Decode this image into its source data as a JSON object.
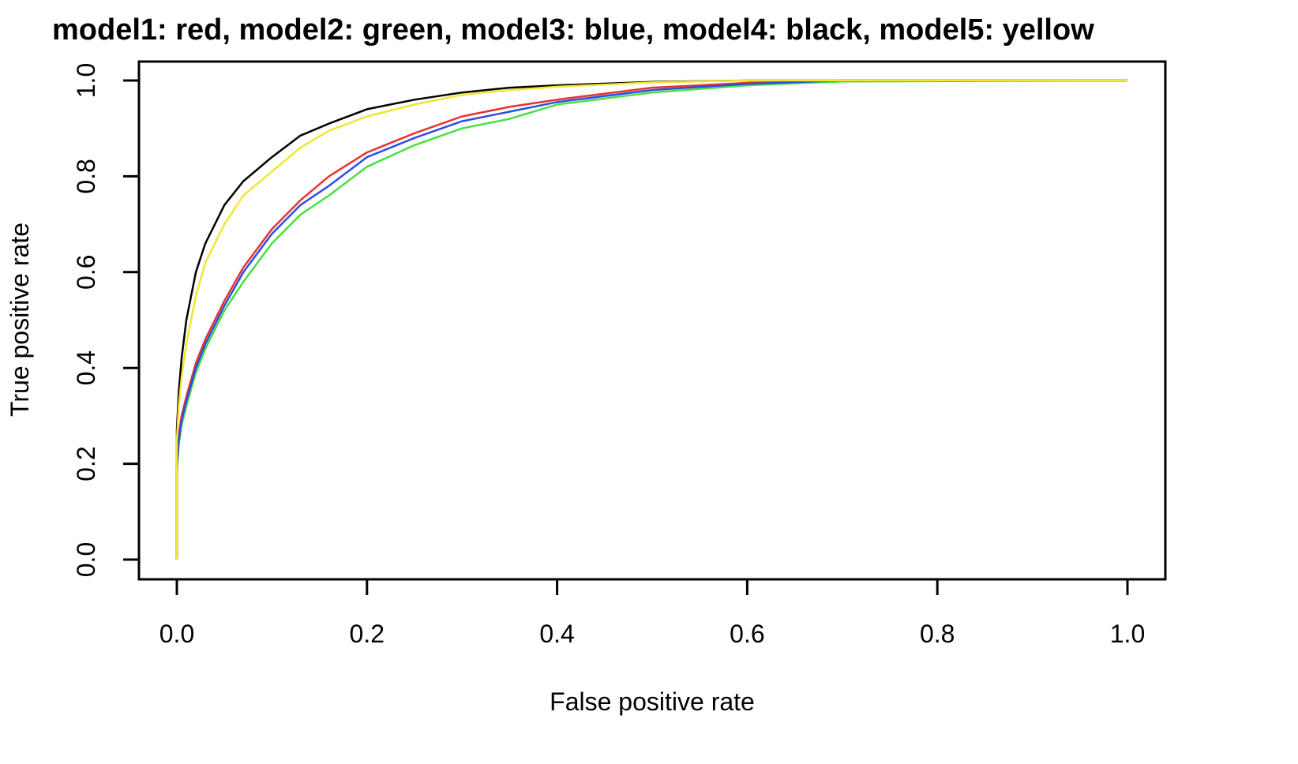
{
  "chart_data": {
    "type": "line",
    "title": "model1: red, model2: green, model3: blue, model4: black, model5: yellow",
    "xlabel": "False positive rate",
    "ylabel": "True positive rate",
    "xlim": [
      0,
      1
    ],
    "ylim": [
      0,
      1
    ],
    "xticks": [
      "0.0",
      "0.2",
      "0.4",
      "0.6",
      "0.8",
      "1.0"
    ],
    "yticks": [
      "0.0",
      "0.2",
      "0.4",
      "0.6",
      "0.8",
      "1.0"
    ],
    "grid": false,
    "legend": "none",
    "series": [
      {
        "name": "model1",
        "color": "#e8322c",
        "points": [
          [
            0,
            0
          ],
          [
            0,
            0.2
          ],
          [
            0.002,
            0.26
          ],
          [
            0.005,
            0.3
          ],
          [
            0.01,
            0.34
          ],
          [
            0.02,
            0.41
          ],
          [
            0.03,
            0.46
          ],
          [
            0.05,
            0.54
          ],
          [
            0.07,
            0.61
          ],
          [
            0.1,
            0.69
          ],
          [
            0.13,
            0.75
          ],
          [
            0.16,
            0.8
          ],
          [
            0.2,
            0.85
          ],
          [
            0.25,
            0.89
          ],
          [
            0.3,
            0.925
          ],
          [
            0.35,
            0.945
          ],
          [
            0.4,
            0.96
          ],
          [
            0.5,
            0.985
          ],
          [
            0.6,
            0.995
          ],
          [
            0.7,
            1.0
          ],
          [
            1.0,
            1.0
          ]
        ]
      },
      {
        "name": "model2",
        "color": "#48e040",
        "points": [
          [
            0,
            0
          ],
          [
            0,
            0.18
          ],
          [
            0.002,
            0.24
          ],
          [
            0.005,
            0.28
          ],
          [
            0.01,
            0.32
          ],
          [
            0.02,
            0.39
          ],
          [
            0.03,
            0.44
          ],
          [
            0.05,
            0.52
          ],
          [
            0.07,
            0.58
          ],
          [
            0.1,
            0.66
          ],
          [
            0.13,
            0.72
          ],
          [
            0.16,
            0.76
          ],
          [
            0.2,
            0.82
          ],
          [
            0.25,
            0.865
          ],
          [
            0.3,
            0.9
          ],
          [
            0.35,
            0.92
          ],
          [
            0.4,
            0.95
          ],
          [
            0.5,
            0.975
          ],
          [
            0.6,
            0.99
          ],
          [
            0.7,
            0.998
          ],
          [
            1.0,
            1.0
          ]
        ]
      },
      {
        "name": "model3",
        "color": "#2b4de6",
        "points": [
          [
            0,
            0
          ],
          [
            0,
            0.19
          ],
          [
            0.002,
            0.25
          ],
          [
            0.005,
            0.29
          ],
          [
            0.01,
            0.33
          ],
          [
            0.02,
            0.4
          ],
          [
            0.03,
            0.45
          ],
          [
            0.05,
            0.53
          ],
          [
            0.07,
            0.6
          ],
          [
            0.1,
            0.68
          ],
          [
            0.13,
            0.74
          ],
          [
            0.16,
            0.78
          ],
          [
            0.2,
            0.84
          ],
          [
            0.25,
            0.88
          ],
          [
            0.3,
            0.915
          ],
          [
            0.35,
            0.935
          ],
          [
            0.4,
            0.955
          ],
          [
            0.5,
            0.98
          ],
          [
            0.6,
            0.993
          ],
          [
            0.7,
            1.0
          ],
          [
            1.0,
            1.0
          ]
        ]
      },
      {
        "name": "model4",
        "color": "#000000",
        "points": [
          [
            0,
            0
          ],
          [
            0,
            0.27
          ],
          [
            0.002,
            0.35
          ],
          [
            0.005,
            0.42
          ],
          [
            0.01,
            0.5
          ],
          [
            0.02,
            0.6
          ],
          [
            0.03,
            0.66
          ],
          [
            0.05,
            0.74
          ],
          [
            0.07,
            0.79
          ],
          [
            0.1,
            0.84
          ],
          [
            0.13,
            0.885
          ],
          [
            0.16,
            0.91
          ],
          [
            0.2,
            0.94
          ],
          [
            0.25,
            0.96
          ],
          [
            0.3,
            0.975
          ],
          [
            0.35,
            0.985
          ],
          [
            0.4,
            0.99
          ],
          [
            0.5,
            0.997
          ],
          [
            0.6,
            1.0
          ],
          [
            1.0,
            1.0
          ]
        ]
      },
      {
        "name": "model5",
        "color": "#f2e632",
        "points": [
          [
            0,
            0
          ],
          [
            0,
            0.25
          ],
          [
            0.002,
            0.32
          ],
          [
            0.005,
            0.38
          ],
          [
            0.01,
            0.45
          ],
          [
            0.02,
            0.55
          ],
          [
            0.03,
            0.62
          ],
          [
            0.05,
            0.7
          ],
          [
            0.07,
            0.76
          ],
          [
            0.1,
            0.81
          ],
          [
            0.13,
            0.86
          ],
          [
            0.16,
            0.895
          ],
          [
            0.2,
            0.925
          ],
          [
            0.25,
            0.95
          ],
          [
            0.3,
            0.97
          ],
          [
            0.35,
            0.98
          ],
          [
            0.4,
            0.987
          ],
          [
            0.5,
            0.996
          ],
          [
            0.6,
            1.0
          ],
          [
            1.0,
            1.0
          ]
        ]
      }
    ]
  }
}
